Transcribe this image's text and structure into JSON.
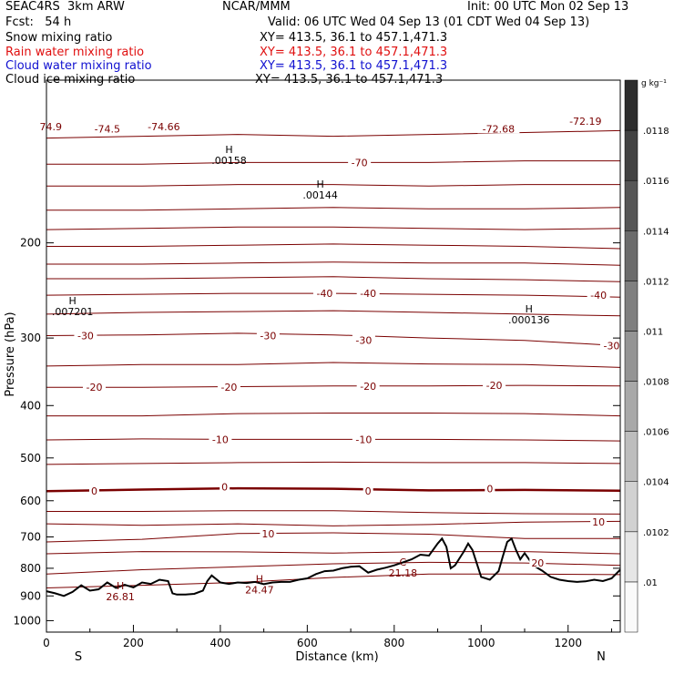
{
  "header": {
    "model": "SEAC4RS  3km ARW",
    "fcst": "Fcst:   54 h",
    "center": "NCAR/MMM",
    "init": "Init: 00 UTC Mon 02 Sep 13",
    "valid": "Valid: 06 UTC Wed 04 Sep 13 (01 CDT Wed 04 Sep 13)"
  },
  "fields": [
    {
      "name": "Snow mixing ratio",
      "xy": "XY= 413.5, 36.1 to 457.1,471.3",
      "color": "#000000"
    },
    {
      "name": "Rain water mixing ratio",
      "xy": "XY= 413.5, 36.1 to 457.1,471.3",
      "color": "#e01010"
    },
    {
      "name": "Cloud water mixing ratio",
      "xy": "XY= 413.5, 36.1 to 457.1,471.3",
      "color": "#1010d0"
    },
    {
      "name": "Cloud ice mixing ratio",
      "xy": "XY= 413.5, 36.1 to 457.1,471.3",
      "color": "#000000"
    }
  ],
  "colors": {
    "isotherm": "#7a0000",
    "terrain": "#000000"
  },
  "chart_data": {
    "type": "line",
    "xlabel": "Distance (km)",
    "ylabel": "Pressure (hPa)",
    "xlim": [
      0,
      1320
    ],
    "ylim": [
      1050,
      100
    ],
    "y_scale": "log",
    "x_ticks": [
      "0",
      "200",
      "400",
      "600",
      "800",
      "1000",
      "1200"
    ],
    "y_ticks": [
      "200",
      "300",
      "400",
      "500",
      "600",
      "700",
      "800",
      "900",
      "1000"
    ],
    "x_ends": {
      "left": "S",
      "right": "N"
    },
    "colorbar": {
      "unit": "g kg⁻¹",
      "levels": [
        ".01",
        ".0102",
        ".0104",
        ".0106",
        ".0108",
        ".011",
        ".0112",
        ".0114",
        ".0116",
        ".0118"
      ]
    },
    "isotherm_labels": [
      {
        "text": "74.9",
        "x": 10,
        "p": 122
      },
      {
        "text": "-74.5",
        "x": 140,
        "p": 123
      },
      {
        "text": "-74.66",
        "x": 270,
        "p": 122
      },
      {
        "text": "-72.68",
        "x": 1040,
        "p": 123
      },
      {
        "text": "-72.19",
        "x": 1240,
        "p": 119
      },
      {
        "text": "-70",
        "x": 720,
        "p": 142
      },
      {
        "text": "-40",
        "x": 640,
        "p": 248
      },
      {
        "text": "-40",
        "x": 740,
        "p": 248
      },
      {
        "text": "-40",
        "x": 1270,
        "p": 250
      },
      {
        "text": "-30",
        "x": 90,
        "p": 297
      },
      {
        "text": "-30",
        "x": 510,
        "p": 297
      },
      {
        "text": "-30",
        "x": 730,
        "p": 303
      },
      {
        "text": "-30",
        "x": 1300,
        "p": 310
      },
      {
        "text": "-20",
        "x": 110,
        "p": 370
      },
      {
        "text": "-20",
        "x": 420,
        "p": 370
      },
      {
        "text": "-20",
        "x": 740,
        "p": 368
      },
      {
        "text": "-20",
        "x": 1030,
        "p": 367
      },
      {
        "text": "-10",
        "x": 400,
        "p": 462
      },
      {
        "text": "-10",
        "x": 730,
        "p": 462
      },
      {
        "text": "0",
        "x": 110,
        "p": 575
      },
      {
        "text": "0",
        "x": 410,
        "p": 565
      },
      {
        "text": "0",
        "x": 740,
        "p": 575
      },
      {
        "text": "0",
        "x": 1020,
        "p": 570
      },
      {
        "text": "10",
        "x": 510,
        "p": 690
      },
      {
        "text": "10",
        "x": 1270,
        "p": 657
      },
      {
        "text": "20",
        "x": 1130,
        "p": 782
      }
    ],
    "extrema": [
      {
        "marker": "H",
        "value": ".00158",
        "x": 420,
        "p": 138,
        "color": "#000000"
      },
      {
        "marker": "H",
        "value": ".00144",
        "x": 630,
        "p": 160,
        "color": "#000000"
      },
      {
        "marker": "H",
        "value": ".007201",
        "x": 60,
        "p": 263,
        "color": "#000000"
      },
      {
        "marker": "H",
        "value": ".000136",
        "x": 1110,
        "p": 272,
        "color": "#000000"
      },
      {
        "marker": "H",
        "value": "26.81",
        "x": 170,
        "p": 885,
        "color": "#7a0000"
      },
      {
        "marker": "H",
        "value": "24.47",
        "x": 490,
        "p": 860,
        "color": "#7a0000"
      },
      {
        "marker": "C",
        "value": "21.18",
        "x": 820,
        "p": 800,
        "color": "#7a0000"
      }
    ],
    "isotherms": [
      {
        "p": [
          128,
          127,
          126,
          127,
          126,
          125,
          124
        ]
      },
      {
        "p": [
          143,
          143,
          142,
          142,
          142,
          141,
          141
        ]
      },
      {
        "p": [
          157,
          157,
          156,
          156,
          157,
          156,
          156
        ]
      },
      {
        "p": [
          174,
          174,
          173,
          172,
          173,
          173,
          172
        ]
      },
      {
        "p": [
          189,
          188,
          187,
          187,
          188,
          189,
          188
        ]
      },
      {
        "p": [
          203,
          203,
          202,
          201,
          202,
          203,
          205
        ]
      },
      {
        "p": [
          219,
          219,
          218,
          217,
          218,
          218,
          220
        ]
      },
      {
        "p": [
          233,
          233,
          232,
          231,
          233,
          234,
          236
        ]
      },
      {
        "p": [
          250,
          249,
          248,
          248,
          249,
          250,
          252
        ]
      },
      {
        "p": [
          271,
          269,
          268,
          267,
          269,
          271,
          273
        ]
      },
      {
        "p": [
          297,
          296,
          294,
          296,
          300,
          303,
          310
        ]
      },
      {
        "p": [
          338,
          336,
          336,
          333,
          335,
          336,
          340
        ]
      },
      {
        "p": [
          370,
          370,
          369,
          368,
          368,
          367,
          368
        ]
      },
      {
        "p": [
          418,
          418,
          414,
          413,
          413,
          414,
          418
        ]
      },
      {
        "p": [
          463,
          461,
          462,
          462,
          462,
          463,
          465
        ]
      },
      {
        "p": [
          514,
          512,
          510,
          509,
          510,
          510,
          512
        ]
      },
      {
        "p": [
          576,
          572,
          569,
          570,
          574,
          573,
          575
        ]
      },
      {
        "p": [
          628,
          628,
          626,
          626,
          631,
          634,
          635
        ]
      },
      {
        "p": [
          662,
          666,
          662,
          668,
          664,
          657,
          655
        ]
      },
      {
        "p": [
          715,
          707,
          690,
          688,
          692,
          705,
          705
        ]
      },
      {
        "p": [
          752,
          745,
          746,
          750,
          745,
          745,
          752
        ]
      },
      {
        "p": [
          820,
          805,
          795,
          785,
          780,
          782,
          790
        ]
      },
      {
        "p": [
          870,
          860,
          850,
          832,
          820,
          820,
          822
        ]
      }
    ],
    "terrain": {
      "x": [
        0,
        20,
        40,
        60,
        80,
        100,
        120,
        140,
        160,
        180,
        200,
        220,
        240,
        260,
        280,
        290,
        300,
        320,
        340,
        360,
        370,
        380,
        400,
        420,
        440,
        460,
        480,
        500,
        520,
        540,
        560,
        580,
        600,
        620,
        640,
        660,
        680,
        700,
        720,
        740,
        760,
        780,
        800,
        820,
        840,
        860,
        880,
        900,
        910,
        920,
        930,
        940,
        960,
        970,
        980,
        1000,
        1020,
        1040,
        1050,
        1060,
        1070,
        1080,
        1090,
        1100,
        1120,
        1140,
        1160,
        1180,
        1200,
        1220,
        1240,
        1260,
        1280,
        1300,
        1320
      ],
      "p": [
        882,
        890,
        900,
        885,
        860,
        880,
        875,
        850,
        870,
        858,
        868,
        850,
        855,
        840,
        845,
        890,
        895,
        895,
        892,
        880,
        845,
        825,
        850,
        855,
        850,
        852,
        848,
        856,
        850,
        848,
        848,
        840,
        835,
        820,
        810,
        808,
        800,
        795,
        793,
        815,
        805,
        798,
        790,
        780,
        770,
        755,
        758,
        720,
        705,
        730,
        800,
        790,
        745,
        720,
        740,
        830,
        840,
        810,
        760,
        715,
        705,
        740,
        770,
        750,
        790,
        808,
        830,
        840,
        845,
        848,
        846,
        840,
        845,
        835,
        805
      ]
    },
    "grid": false
  }
}
